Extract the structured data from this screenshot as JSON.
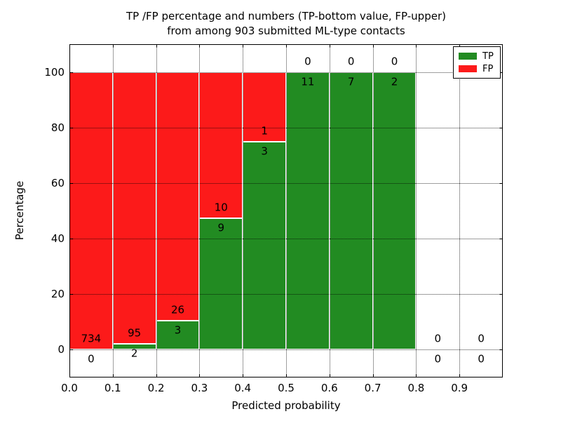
{
  "figure": {
    "title_line1": "TP /FP percentage and numbers (TP-bottom value, FP-upper)",
    "title_line2": "from among 903 submitted ML-type contacts"
  },
  "chart_data": {
    "type": "bar",
    "stacked": true,
    "title": "TP /FP percentage and numbers (TP-bottom value, FP-upper)\nfrom among 903 submitted ML-type contacts",
    "xlabel": "Predicted probability",
    "ylabel": "Percentage",
    "xlim": [
      0.0,
      1.0
    ],
    "ylim": [
      -10,
      110
    ],
    "x_ticks": [
      "0.0",
      "0.1",
      "0.2",
      "0.3",
      "0.4",
      "0.5",
      "0.6",
      "0.7",
      "0.8",
      "0.9"
    ],
    "y_ticks": [
      0,
      20,
      40,
      60,
      80,
      100
    ],
    "grid": true,
    "legend_position": "upper right",
    "total_contacts": 903,
    "categories": [
      "0.0-0.1",
      "0.1-0.2",
      "0.2-0.3",
      "0.3-0.4",
      "0.4-0.5",
      "0.5-0.6",
      "0.6-0.7",
      "0.7-0.8",
      "0.8-0.9",
      "0.9-1.0"
    ],
    "series": [
      {
        "name": "TP",
        "color": "#228b22",
        "values": [
          0,
          2,
          3,
          9,
          3,
          11,
          7,
          2,
          0,
          0
        ]
      },
      {
        "name": "FP",
        "color": "#fc1a1a",
        "values": [
          734,
          95,
          26,
          10,
          1,
          0,
          0,
          0,
          0,
          0
        ]
      }
    ],
    "bins": [
      {
        "x_start": 0.0,
        "x_end": 0.1,
        "tp": 0,
        "fp": 734,
        "tp_percent": 0.0
      },
      {
        "x_start": 0.1,
        "x_end": 0.2,
        "tp": 2,
        "fp": 95,
        "tp_percent": 2.06
      },
      {
        "x_start": 0.2,
        "x_end": 0.3,
        "tp": 3,
        "fp": 26,
        "tp_percent": 10.34
      },
      {
        "x_start": 0.3,
        "x_end": 0.4,
        "tp": 9,
        "fp": 10,
        "tp_percent": 47.37
      },
      {
        "x_start": 0.4,
        "x_end": 0.5,
        "tp": 3,
        "fp": 1,
        "tp_percent": 75.0
      },
      {
        "x_start": 0.5,
        "x_end": 0.6,
        "tp": 11,
        "fp": 0,
        "tp_percent": 100.0
      },
      {
        "x_start": 0.6,
        "x_end": 0.7,
        "tp": 7,
        "fp": 0,
        "tp_percent": 100.0
      },
      {
        "x_start": 0.7,
        "x_end": 0.8,
        "tp": 2,
        "fp": 0,
        "tp_percent": 100.0
      },
      {
        "x_start": 0.8,
        "x_end": 0.9,
        "tp": 0,
        "fp": 0,
        "tp_percent": null
      },
      {
        "x_start": 0.9,
        "x_end": 1.0,
        "tp": 0,
        "fp": 0,
        "tp_percent": null
      }
    ],
    "colors": {
      "tp": "#228b22",
      "fp": "#fc1a1a",
      "grid": "#000000",
      "frame": "#000000",
      "bar_edge": "#ffffff",
      "background": "#ffffff",
      "text": "#000000"
    }
  }
}
